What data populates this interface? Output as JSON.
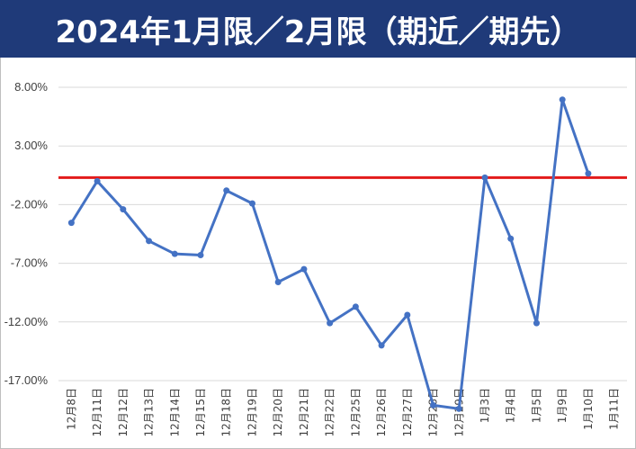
{
  "chart_data": {
    "type": "line",
    "title": "2024年1月限／2月限（期近／期先）",
    "categories": [
      "12月8日",
      "12月11日",
      "12月12日",
      "12月13日",
      "12月14日",
      "12月15日",
      "12月18日",
      "12月19日",
      "12月20日",
      "12月21日",
      "12月22日",
      "12月25日",
      "12月26日",
      "12月27日",
      "12月28日",
      "12月29日",
      "1月3日",
      "1月4日",
      "1月5日",
      "1月9日",
      "1月10日",
      "1月11日"
    ],
    "series": [
      {
        "values": [
          -3.55,
          0.0,
          -2.4,
          -5.1,
          -6.2,
          -6.3,
          -0.8,
          -1.9,
          -8.6,
          -7.5,
          -12.1,
          -10.7,
          -14.0,
          -11.4,
          -19.1,
          -19.4,
          0.3,
          -4.9,
          -12.1,
          6.95,
          0.65,
          null
        ],
        "color": "#4472c4"
      }
    ],
    "reference_line": {
      "value": 0.3,
      "color": "#e31b1b"
    },
    "yticks": [
      "8.00%",
      "3.00%",
      "-2.00%",
      "-7.00%",
      "-12.00%",
      "-17.00%"
    ],
    "ytick_values": [
      8,
      3,
      -2,
      -7,
      -12,
      -17
    ],
    "ylim": [
      -17,
      8
    ],
    "grid": true,
    "legend": "none",
    "colors": {
      "title_bg": "#1f3a79",
      "title_text": "#ffffff",
      "line": "#4472c4",
      "reference": "#e31b1b",
      "grid": "#d9d9d9"
    }
  }
}
